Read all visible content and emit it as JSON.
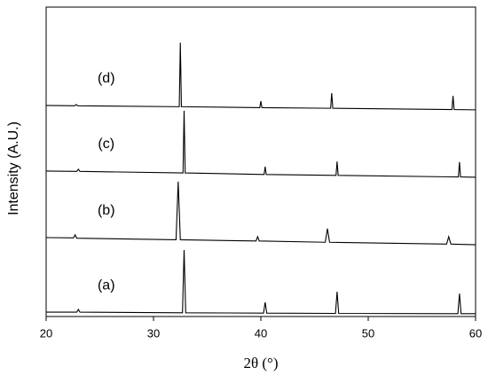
{
  "chart_data": {
    "type": "line",
    "x_label": "2θ (°)",
    "y_label": "Intensity (A.U.)",
    "xlim": [
      20,
      60
    ],
    "xticks": [
      20,
      30,
      40,
      50,
      60
    ],
    "ylim": [
      0,
      100
    ],
    "grid": false,
    "series": [
      {
        "name": "(a)",
        "color": "#000000",
        "x": [
          20,
          22.85,
          23.0,
          23.15,
          32.7,
          32.85,
          33.0,
          40.25,
          40.4,
          40.55,
          46.95,
          47.1,
          47.25,
          58.35,
          58.5,
          58.65,
          60
        ],
        "values": [
          1.4,
          1.4,
          2.3,
          1.4,
          1.2,
          21.5,
          1.2,
          1.1,
          4.6,
          1.1,
          1.0,
          8.0,
          1.0,
          0.9,
          7.4,
          0.9,
          0.9
        ]
      },
      {
        "name": "(b)",
        "color": "#000000",
        "x": [
          20,
          22.55,
          22.7,
          22.85,
          32.1,
          32.3,
          32.5,
          39.55,
          39.7,
          39.85,
          46.0,
          46.2,
          46.4,
          57.3,
          57.5,
          57.7,
          60
        ],
        "values": [
          25.5,
          25.4,
          26.4,
          25.3,
          24.8,
          43.6,
          24.8,
          24.4,
          25.8,
          24.4,
          24.0,
          28.4,
          24.0,
          23.4,
          25.8,
          23.4,
          23.2
        ]
      },
      {
        "name": "(c)",
        "color": "#000000",
        "x": [
          20,
          22.85,
          23.0,
          23.15,
          32.75,
          32.85,
          32.95,
          40.3,
          40.4,
          40.5,
          47.0,
          47.1,
          47.2,
          58.4,
          58.5,
          58.6,
          60
        ],
        "values": [
          47,
          46.9,
          47.6,
          46.9,
          46.4,
          66.5,
          46.4,
          45.9,
          48.4,
          45.9,
          45.6,
          50.1,
          45.6,
          45.1,
          49.9,
          45.1,
          45
        ]
      },
      {
        "name": "(d)",
        "color": "#000000",
        "x": [
          20,
          22.65,
          22.8,
          22.95,
          32.4,
          32.5,
          32.6,
          39.9,
          40.0,
          40.1,
          46.5,
          46.6,
          46.7,
          57.8,
          57.9,
          58.0,
          60
        ],
        "values": [
          68.2,
          68.1,
          68.5,
          68.1,
          67.8,
          88.5,
          67.8,
          67.5,
          69.6,
          67.5,
          67.3,
          72.2,
          67.3,
          66.9,
          71.3,
          66.9,
          66.8
        ]
      }
    ]
  }
}
